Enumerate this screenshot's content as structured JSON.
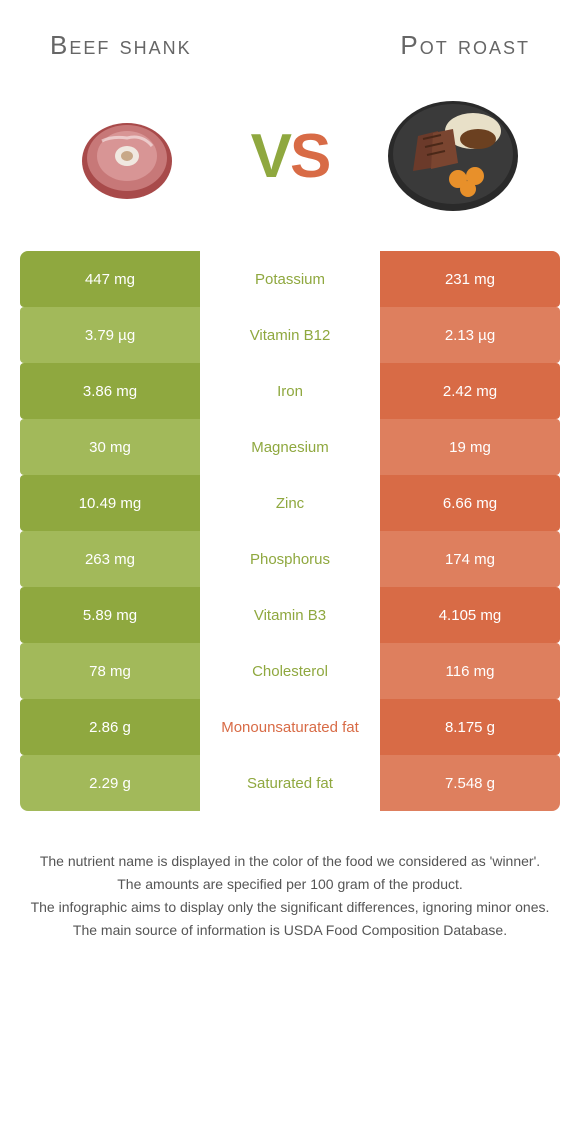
{
  "header": {
    "left_title": "Beef shank",
    "right_title": "Pot roast",
    "vs_v": "V",
    "vs_s": "S"
  },
  "colors": {
    "green_dark": "#8fa83f",
    "green_light": "#a2b95a",
    "orange_dark": "#d86b46",
    "orange_light": "#de7f5e",
    "label_green": "#8fa83f",
    "label_orange": "#d86b46"
  },
  "rows": [
    {
      "left": "447 mg",
      "label": "Potassium",
      "right": "231 mg",
      "winner": "left"
    },
    {
      "left": "3.79 µg",
      "label": "Vitamin B12",
      "right": "2.13 µg",
      "winner": "left"
    },
    {
      "left": "3.86 mg",
      "label": "Iron",
      "right": "2.42 mg",
      "winner": "left"
    },
    {
      "left": "30 mg",
      "label": "Magnesium",
      "right": "19 mg",
      "winner": "left"
    },
    {
      "left": "10.49 mg",
      "label": "Zinc",
      "right": "6.66 mg",
      "winner": "left"
    },
    {
      "left": "263 mg",
      "label": "Phosphorus",
      "right": "174 mg",
      "winner": "left"
    },
    {
      "left": "5.89 mg",
      "label": "Vitamin B3",
      "right": "4.105 mg",
      "winner": "left"
    },
    {
      "left": "78 mg",
      "label": "Cholesterol",
      "right": "116 mg",
      "winner": "left"
    },
    {
      "left": "2.86 g",
      "label": "Monounsaturated fat",
      "right": "8.175 g",
      "winner": "right"
    },
    {
      "left": "2.29 g",
      "label": "Saturated fat",
      "right": "7.548 g",
      "winner": "left"
    }
  ],
  "footer": {
    "line1": "The nutrient name is displayed in the color of the food we considered as 'winner'.",
    "line2": "The amounts are specified per 100 gram of the product.",
    "line3": "The infographic aims to display only the significant differences, ignoring minor ones.",
    "line4": "The main source of information is USDA Food Composition Database."
  }
}
